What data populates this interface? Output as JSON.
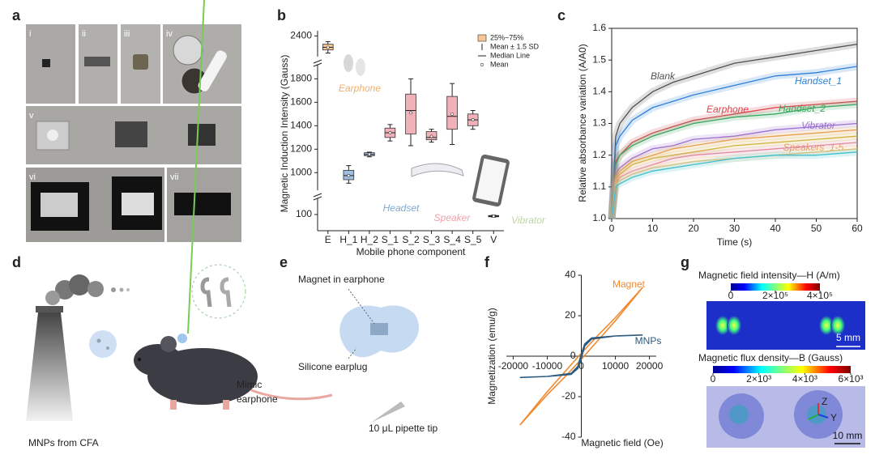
{
  "panel_labels": [
    "a",
    "b",
    "c",
    "d",
    "e",
    "f",
    "g"
  ],
  "panel_a": {
    "photo_labels": [
      "i",
      "ii",
      "iii",
      "iv",
      "v",
      "vi",
      "vii"
    ]
  },
  "chart_data": [
    {
      "type": "box",
      "x_label": "Mobile phone component",
      "y_label": "Magnetic Induction Intensity (Gauss)",
      "categories": [
        "E",
        "H_1",
        "H_2",
        "S_1",
        "S_2",
        "S_3",
        "S_4",
        "S_5",
        "V"
      ],
      "y_segments": [
        {
          "ylim": [
            50,
            150
          ],
          "yticks": [
            100
          ]
        },
        {
          "ylim": [
            850,
            1920
          ],
          "yticks": [
            1000,
            1200,
            1400,
            1600,
            1800
          ]
        },
        {
          "ylim": [
            2200,
            2450
          ],
          "yticks": [
            2400
          ]
        }
      ],
      "boxes": {
        "q1": [
          2265,
          940,
          1145,
          1300,
          1330,
          1280,
          1370,
          1400,
          93
        ],
        "q3": [
          2320,
          1020,
          1170,
          1380,
          1670,
          1350,
          1650,
          1500,
          97
        ],
        "median": [
          2290,
          975,
          1155,
          1340,
          1530,
          1300,
          1480,
          1450,
          95
        ],
        "mean": [
          2290,
          975,
          1157,
          1340,
          1510,
          1310,
          1500,
          1450,
          95
        ],
        "whisker_low": [
          2235,
          910,
          1135,
          1270,
          1230,
          1260,
          1240,
          1370,
          92
        ],
        "whisker_high": [
          2345,
          1060,
          1175,
          1410,
          1800,
          1370,
          1760,
          1530,
          98
        ]
      },
      "colors": [
        "#f6c794",
        "#9fbfe0",
        "#9fbfe0",
        "#f2b1b8",
        "#f2b1b8",
        "#f2b1b8",
        "#f2b1b8",
        "#f2b1b8",
        "#c9e0b0"
      ],
      "legend": {
        "box": "25%~75%",
        "whisker": "Mean ± 1.5 SD",
        "median": "Median Line",
        "mean": "Mean"
      },
      "annotations": [
        "Earphone",
        "Headset",
        "Speaker",
        "Vibrator"
      ],
      "annotation_colors": [
        "#f0b070",
        "#7fa8d0",
        "#f0a0a8",
        "#b8d8a0"
      ]
    },
    {
      "type": "line",
      "x_label": "Time (s)",
      "y_label": "Relative absorbance variation (A/A0)",
      "x": [
        0,
        1,
        2,
        5,
        10,
        15,
        20,
        30,
        40,
        50,
        60
      ],
      "xlim": [
        0,
        60
      ],
      "ylim": [
        1,
        1.6
      ],
      "xticks": [
        0,
        10,
        20,
        30,
        40,
        50,
        60
      ],
      "yticks": [
        {
          "value": 1,
          "label": "1.0"
        },
        1.1,
        1.2,
        1.3,
        1.4,
        1.5,
        1.6
      ],
      "series": [
        {
          "name": "Blank",
          "color": "#505050",
          "values": [
            1,
            1.26,
            1.3,
            1.35,
            1.4,
            1.43,
            1.45,
            1.49,
            1.51,
            1.53,
            1.55
          ]
        },
        {
          "name": "Handset_1",
          "color": "#2f7fd6",
          "values": [
            1,
            1.23,
            1.26,
            1.31,
            1.35,
            1.37,
            1.39,
            1.42,
            1.45,
            1.46,
            1.48
          ]
        },
        {
          "name": "Earphone",
          "color": "#e0404a",
          "values": [
            1,
            1.18,
            1.2,
            1.24,
            1.27,
            1.29,
            1.31,
            1.33,
            1.35,
            1.36,
            1.37
          ]
        },
        {
          "name": "Handset_2",
          "color": "#3aa860",
          "values": [
            1,
            1.17,
            1.2,
            1.23,
            1.26,
            1.28,
            1.3,
            1.32,
            1.33,
            1.35,
            1.36
          ]
        },
        {
          "name": "Vibrator",
          "color": "#9b6fd0",
          "values": [
            1,
            1.14,
            1.16,
            1.19,
            1.22,
            1.23,
            1.25,
            1.26,
            1.28,
            1.29,
            1.3
          ]
        },
        {
          "name": "Speakers_1-5",
          "color": "#e6a050",
          "values": [
            1,
            1.13,
            1.15,
            1.18,
            1.2,
            1.22,
            1.23,
            1.25,
            1.26,
            1.27,
            1.28
          ]
        },
        {
          "color": "#d4b040",
          "values": [
            1,
            1.12,
            1.14,
            1.17,
            1.19,
            1.2,
            1.21,
            1.23,
            1.24,
            1.25,
            1.26
          ]
        },
        {
          "color": "#e08aa0",
          "values": [
            1,
            1.11,
            1.13,
            1.15,
            1.17,
            1.19,
            1.2,
            1.21,
            1.22,
            1.23,
            1.24
          ]
        },
        {
          "color": "#f0c070",
          "values": [
            1,
            1.11,
            1.12,
            1.14,
            1.16,
            1.17,
            1.18,
            1.19,
            1.2,
            1.21,
            1.22
          ]
        },
        {
          "color": "#40c0d0",
          "values": [
            1,
            1.1,
            1.11,
            1.13,
            1.15,
            1.16,
            1.17,
            1.19,
            1.2,
            1.2,
            1.21
          ]
        }
      ]
    },
    {
      "type": "loop",
      "x_label": "Magnetic field (Oe)",
      "y_label": "Magnetization (emu/g)",
      "xlim": [
        -22000,
        22000
      ],
      "ylim": [
        -40,
        40
      ],
      "xticks": [
        -20000,
        -10000,
        0,
        10000,
        20000
      ],
      "yticks": [
        -40,
        -20,
        0,
        20,
        40
      ],
      "series": [
        {
          "name": "Magnet",
          "color": "#f08a30",
          "x": [
            -18000,
            -10000,
            -5000,
            0,
            5000,
            10000,
            18000,
            18000,
            10000,
            5000,
            0,
            -5000,
            -10000,
            -18000
          ],
          "values": [
            -34,
            -19,
            -10.5,
            -1.5,
            8,
            17.5,
            34,
            34,
            19,
            10.5,
            1.5,
            -8,
            -17.5,
            -34
          ]
        },
        {
          "name": "MNPs",
          "color": "#2b5a80",
          "x": [
            -18000,
            -10000,
            -3000,
            -1000,
            0,
            1000,
            3000,
            10000,
            18000,
            18000,
            10000,
            3000,
            1000,
            0,
            -1000,
            -3000,
            -10000,
            -18000
          ],
          "values": [
            -10.5,
            -10,
            -9,
            -6,
            -1,
            5,
            8.5,
            10,
            10.5,
            10.5,
            10,
            9,
            6,
            1,
            -5,
            -8.5,
            -10,
            -10.5
          ]
        }
      ]
    }
  ],
  "panel_d": {
    "source": "MNPs from CFA",
    "mimic": [
      "Mimic",
      "earphone"
    ]
  },
  "panel_e": {
    "magnet": "Magnet in earphone",
    "earplug": "Silicone earplug",
    "pipette": "10 μL pipette tip"
  },
  "panel_g": {
    "colorbars": [
      {
        "title": "Magnetic field intensity—H (A/m)",
        "lim": [
          0,
          400000
        ],
        "ticks": [
          0,
          {
            "value": 200000,
            "label": "2×10⁵"
          },
          {
            "value": 400000,
            "label": "4×10⁵"
          }
        ],
        "scale_bar": "5 mm"
      },
      {
        "title": "Magnetic flux density—B (Gauss)",
        "lim": [
          0,
          6000
        ],
        "ticks": [
          0,
          {
            "value": 2000,
            "label": "2×10³"
          },
          {
            "value": 4000,
            "label": "4×10³"
          },
          {
            "value": 6000,
            "label": "6×10³"
          }
        ],
        "scale_bar": "10 mm"
      }
    ],
    "axes": [
      "Z",
      "Y"
    ]
  }
}
